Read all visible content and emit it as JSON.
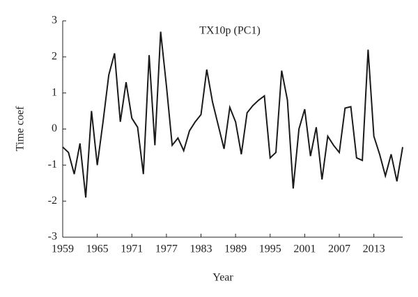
{
  "chart_data": {
    "type": "line",
    "title": "TX10p (PC1)",
    "x_label": "Year",
    "y_label": "Time coef",
    "x": [
      1959,
      1960,
      1961,
      1962,
      1963,
      1964,
      1965,
      1966,
      1967,
      1968,
      1969,
      1970,
      1971,
      1972,
      1973,
      1974,
      1975,
      1976,
      1977,
      1978,
      1979,
      1980,
      1981,
      1982,
      1983,
      1984,
      1985,
      1986,
      1987,
      1988,
      1989,
      1990,
      1991,
      1992,
      1993,
      1994,
      1995,
      1996,
      1997,
      1998,
      1999,
      2000,
      2001,
      2002,
      2003,
      2004,
      2005,
      2006,
      2007,
      2008,
      2009,
      2010,
      2011,
      2012,
      2013,
      2014,
      2015,
      2016,
      2017,
      2018
    ],
    "series": [
      {
        "color": "#1a1a1a",
        "values": [
          -0.5,
          -0.65,
          -1.25,
          -0.4,
          -1.9,
          0.5,
          -1.0,
          0.2,
          1.5,
          2.1,
          0.2,
          1.3,
          0.3,
          0.05,
          -1.25,
          2.05,
          -0.45,
          2.7,
          1.2,
          -0.45,
          -0.25,
          -0.6,
          -0.05,
          0.2,
          0.4,
          1.65,
          0.75,
          0.1,
          -0.55,
          0.6,
          0.2,
          -0.7,
          0.45,
          0.65,
          0.8,
          0.92,
          -0.8,
          -0.65,
          1.62,
          0.8,
          -1.65,
          0,
          0.55,
          -0.75,
          0.05,
          -1.4,
          -0.2,
          -0.45,
          -0.65,
          0.58,
          0.62,
          -0.8,
          -0.87,
          2.2,
          -0.2,
          -0.7,
          -1.3,
          -0.7,
          -1.45,
          -0.5
        ]
      }
    ],
    "xlim": [
      1959,
      2018
    ],
    "xticks": [
      1959,
      1965,
      1971,
      1977,
      1983,
      1989,
      1995,
      2001,
      2007,
      2013
    ],
    "ylim": [
      -3,
      3
    ],
    "yticks": [
      -3,
      -2,
      -1,
      0,
      1,
      2,
      3
    ]
  }
}
